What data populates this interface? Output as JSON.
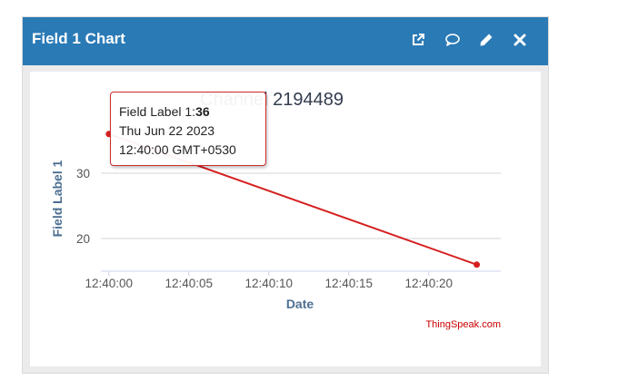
{
  "header": {
    "title": "Field 1 Chart",
    "icons": [
      "external-link-icon",
      "comment-icon",
      "pencil-icon",
      "close-icon"
    ]
  },
  "chart_data": {
    "type": "line",
    "title": "Channel 2194489",
    "xlabel": "Date",
    "ylabel": "Field Label 1",
    "x_ticks": [
      "12:40:00",
      "12:40:05",
      "12:40:10",
      "12:40:15",
      "12:40:20"
    ],
    "y_ticks": [
      20,
      30
    ],
    "xlim": [
      "12:39:59.5",
      "12:40:24.5"
    ],
    "ylim": [
      15,
      40
    ],
    "grid": true,
    "series": [
      {
        "x": [
          "12:40:00",
          "12:40:23"
        ],
        "y": [
          36,
          16
        ],
        "color": "#d62020"
      }
    ],
    "tooltip": {
      "label": "Field Label 1:",
      "value": "36",
      "date": "Thu Jun 22 2023",
      "time": "12:40:00 GMT+0530"
    },
    "credit": "ThingSpeak.com"
  }
}
